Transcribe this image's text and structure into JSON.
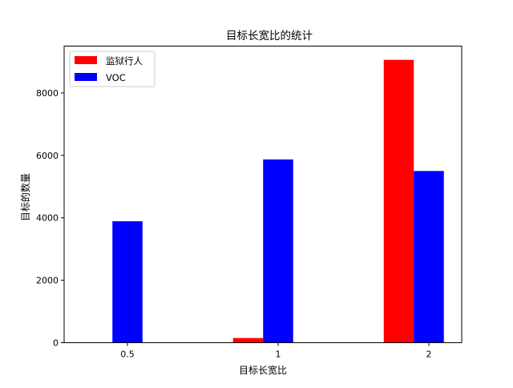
{
  "chart_data": {
    "type": "bar",
    "title": "目标长宽比的统计",
    "xlabel": "目标长宽比",
    "ylabel": "目标的数量",
    "categories": [
      "0.5",
      "1",
      "2"
    ],
    "series": [
      {
        "name": "监狱行人",
        "color": "#ff0000",
        "values": [
          0,
          150,
          9060
        ]
      },
      {
        "name": "VOC",
        "color": "#0000ff",
        "values": [
          3890,
          5870,
          5500
        ]
      }
    ],
    "ylim": [
      0,
      9500
    ],
    "yticks": [
      0,
      2000,
      4000,
      6000,
      8000
    ],
    "grid": false,
    "legend_position": "top-left"
  }
}
